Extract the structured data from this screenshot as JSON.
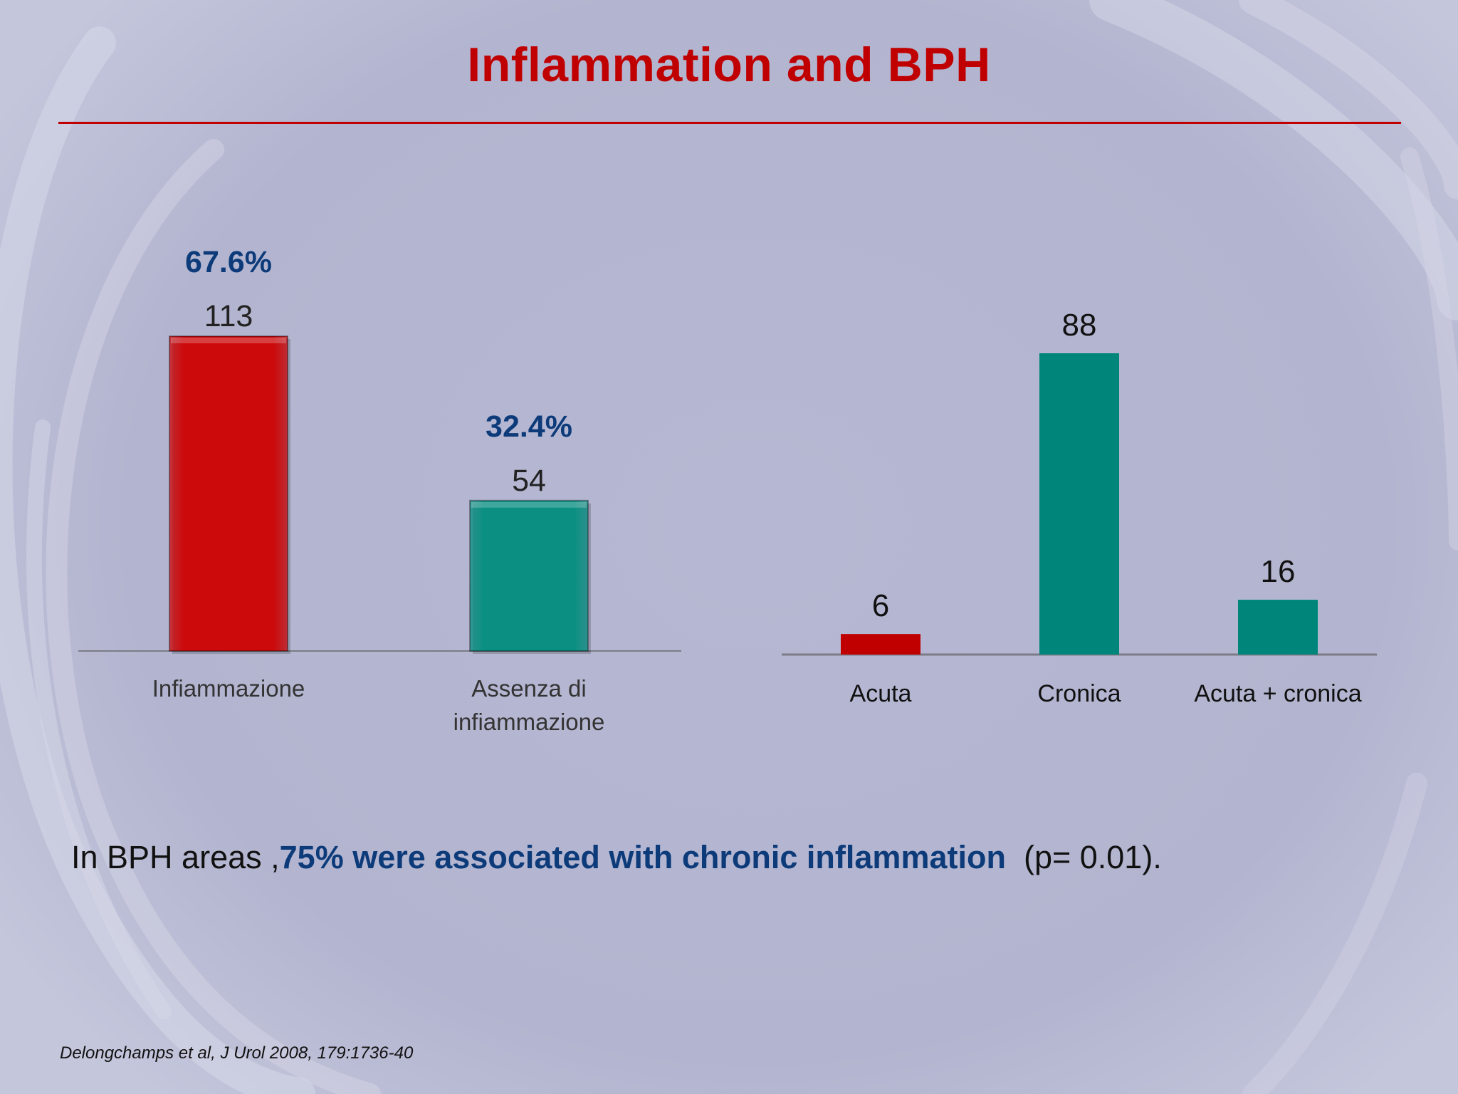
{
  "slide": {
    "title": "Inflammation and BPH",
    "statement_prefix": "In BPH areas ,",
    "statement_emphasis": "75% were associated with chronic inflammation",
    "statement_suffix": "  (p= 0.01).",
    "citation": "Delongchamps et al, J Urol 2008, 179:1736-40"
  },
  "colors": {
    "title": "#c00000",
    "accent_blue": "#0d3b7a",
    "red_bar": "#cc0a0c",
    "teal_bar": "#0a8f82",
    "teal_bar_dark": "#00857a"
  },
  "chart_data": [
    {
      "type": "bar",
      "categories": [
        "Infiammazione",
        "Assenza di infiammazione"
      ],
      "values": [
        113,
        54
      ],
      "data_labels": [
        "113",
        "54"
      ],
      "percent_labels": [
        "67.6%",
        "32.4%"
      ],
      "bar_colors": [
        "#cc0a0c",
        "#0a8f82"
      ],
      "title": "",
      "xlabel": "",
      "ylabel": "",
      "ylim": [
        0,
        113
      ],
      "grid": false,
      "legend": "none"
    },
    {
      "type": "bar",
      "categories": [
        "Acuta",
        "Cronica",
        "Acuta + cronica"
      ],
      "values": [
        6,
        88,
        16
      ],
      "data_labels": [
        "6",
        "88",
        "16"
      ],
      "bar_colors": [
        "#c00000",
        "#00857a",
        "#00857a"
      ],
      "title": "",
      "xlabel": "",
      "ylabel": "",
      "ylim": [
        0,
        88
      ],
      "grid": false,
      "legend": "none"
    }
  ]
}
